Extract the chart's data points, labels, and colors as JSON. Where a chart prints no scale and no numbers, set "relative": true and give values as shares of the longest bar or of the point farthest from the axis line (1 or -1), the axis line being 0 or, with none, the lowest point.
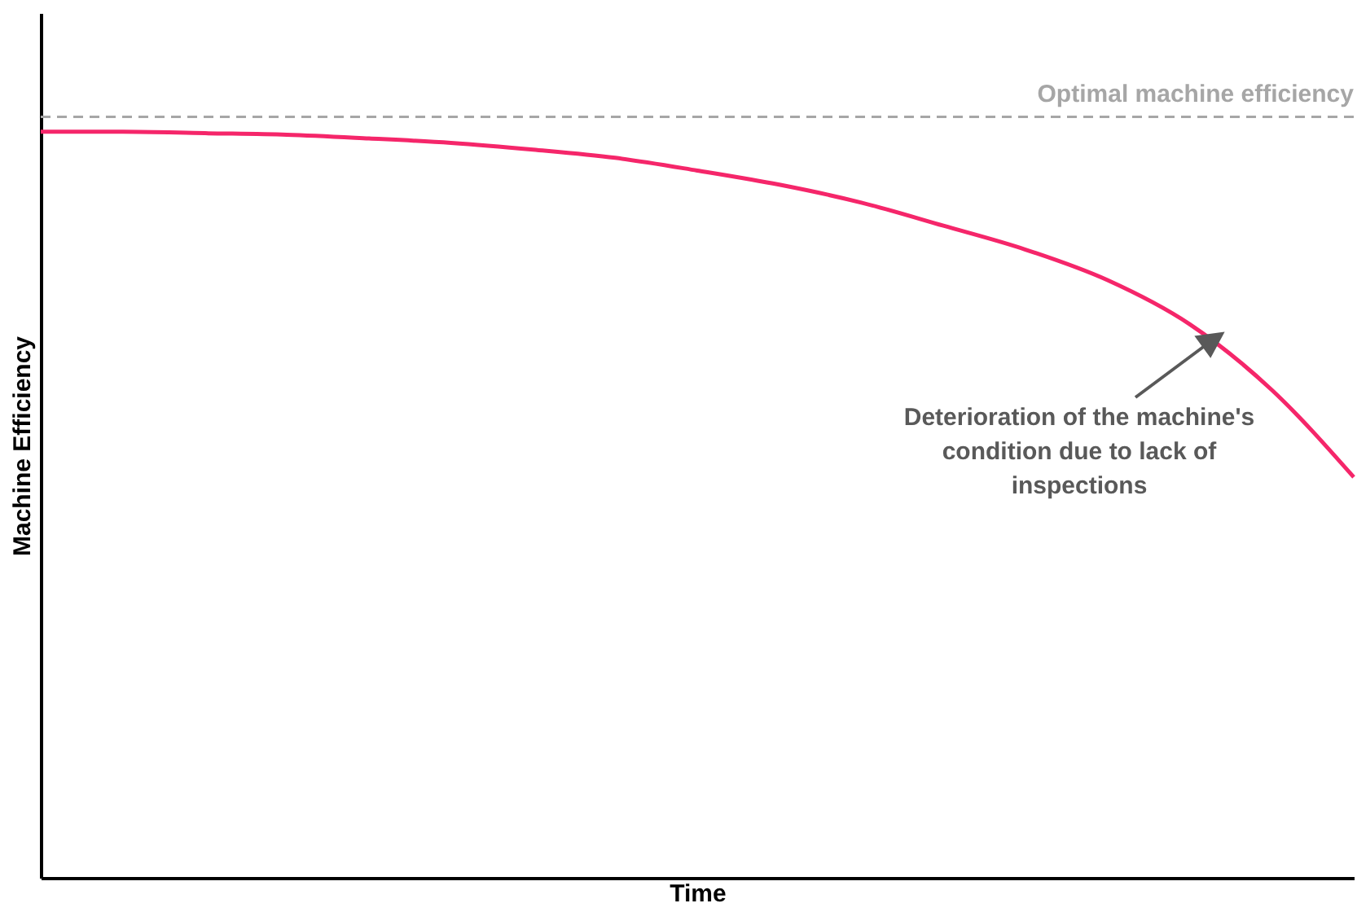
{
  "chart_data": {
    "type": "line",
    "relative": true,
    "xlabel": "Time",
    "ylabel": "Machine Efficiency",
    "categories": [
      null,
      null,
      null,
      null,
      null,
      null,
      null,
      null,
      null,
      null,
      null,
      null,
      null,
      null,
      null,
      null,
      null
    ],
    "series": [
      {
        "color": "#f5266a",
        "values": [
          1,
          1,
          0.998,
          0.996,
          0.991,
          0.985,
          0.976,
          0.965,
          0.948,
          0.929,
          0.905,
          0.874,
          0.842,
          0.801,
          0.742,
          0.654,
          0.537
        ]
      }
    ],
    "ref_lines": [
      {
        "axis": "y",
        "value": 1.02,
        "label": "Optimal machine efficiency",
        "color": "#a6a6a6",
        "line_style": "dashed"
      }
    ],
    "annotations": [
      "Deterioration of the machine's condition due to lack of inspections"
    ],
    "marker": "none",
    "line_style": "solid",
    "grid": false
  }
}
